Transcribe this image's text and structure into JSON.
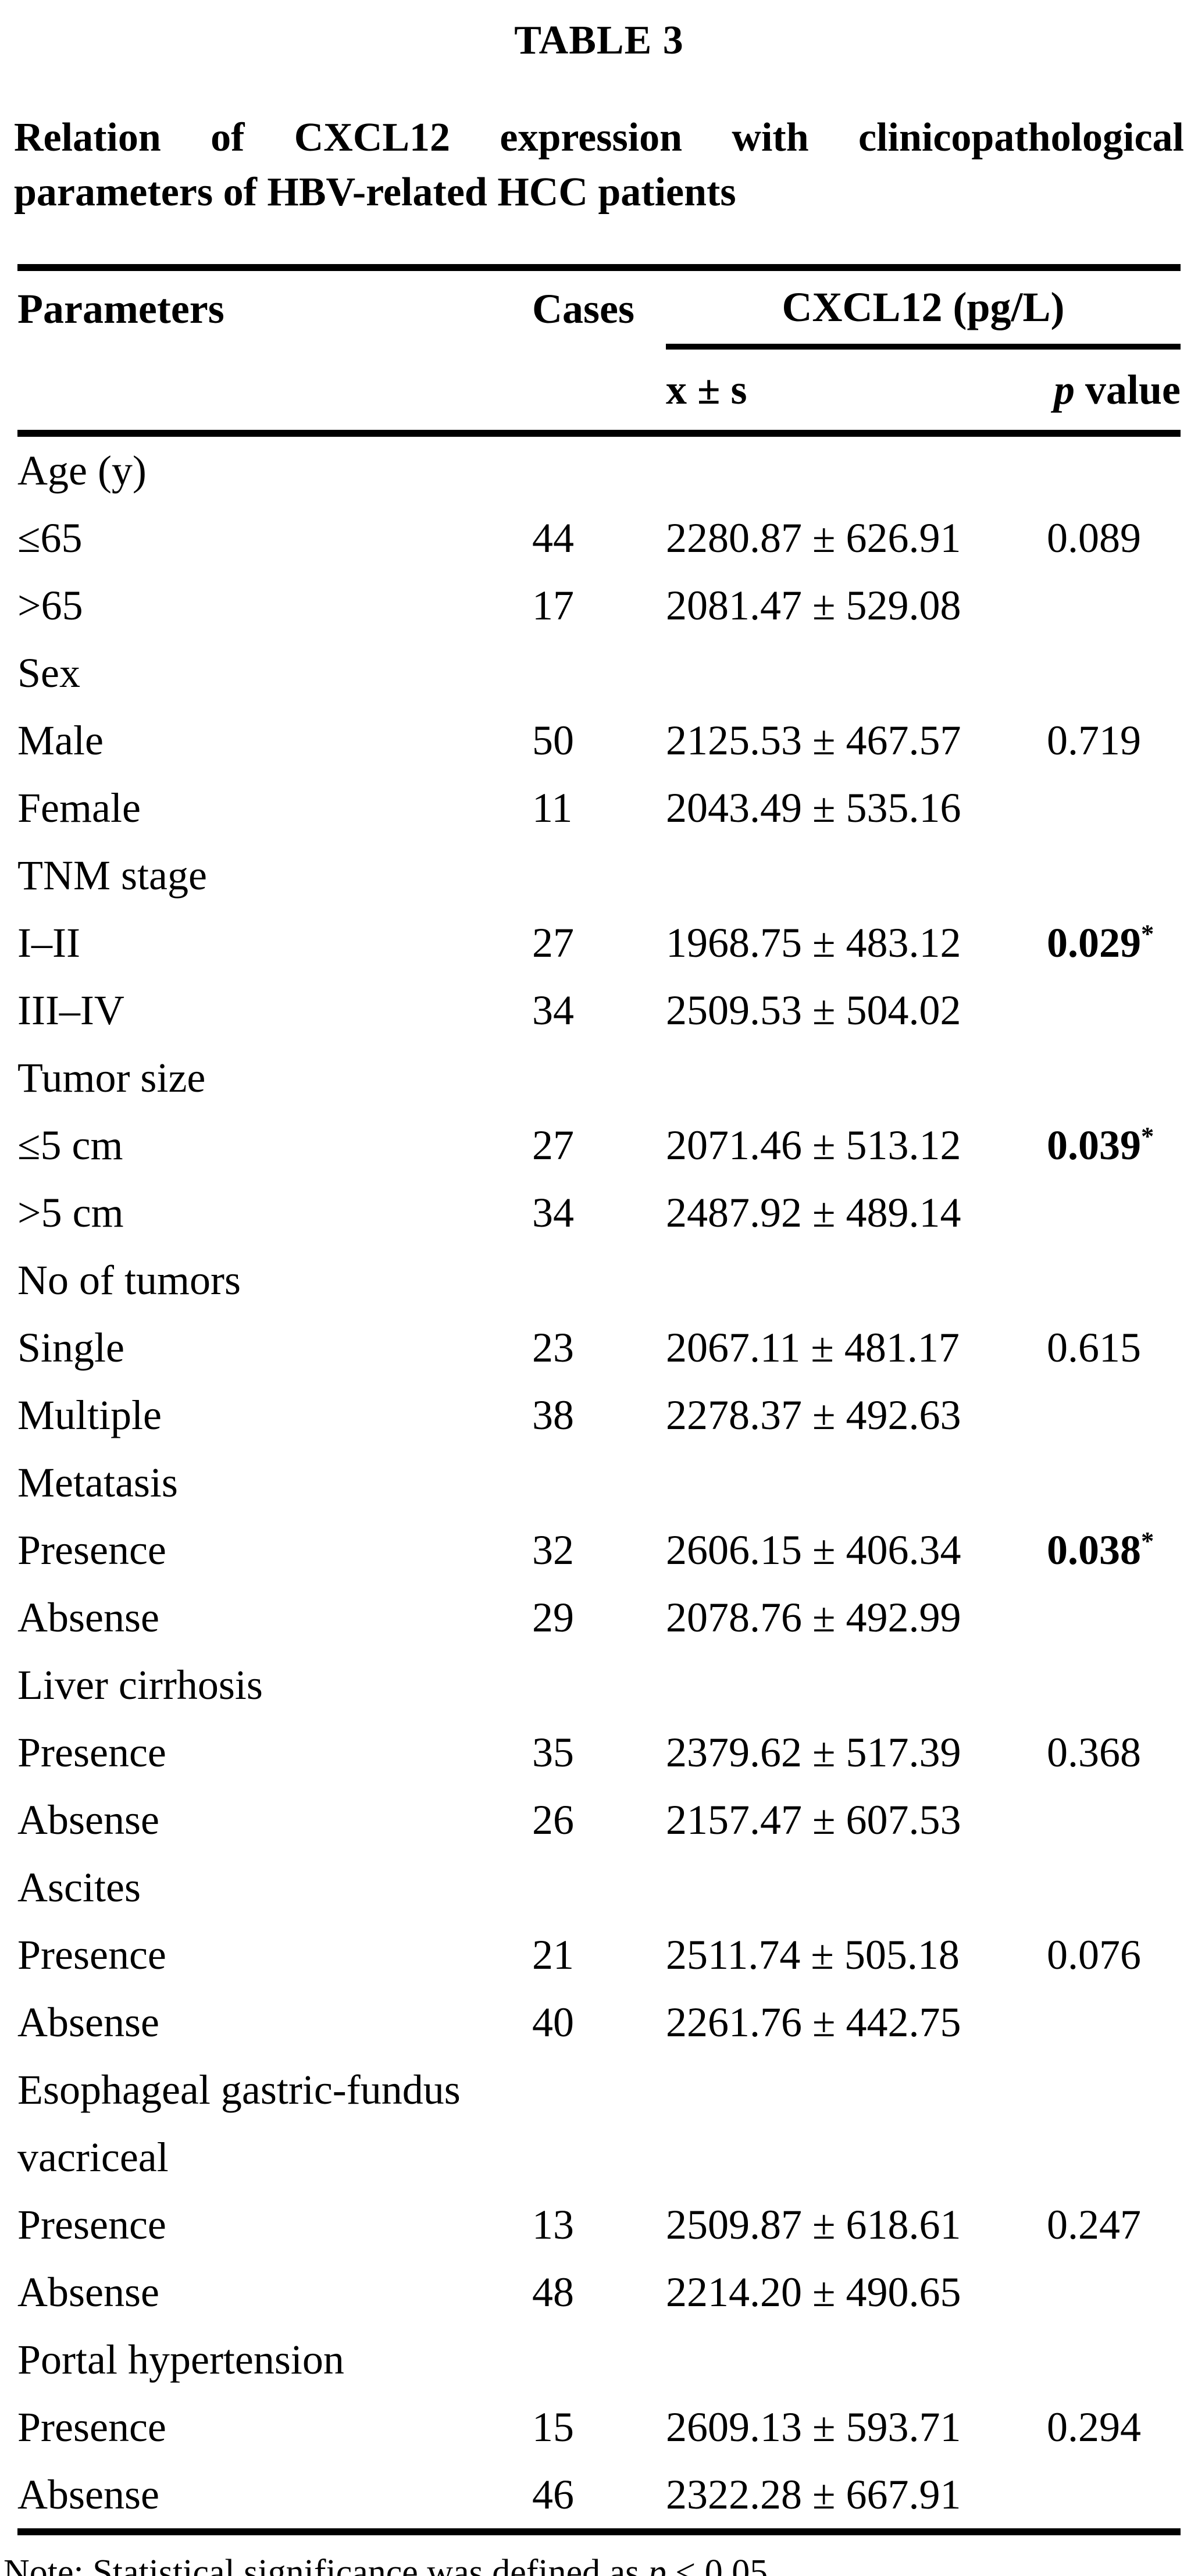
{
  "page": {
    "background": "#ffffff",
    "text_color": "#000000"
  },
  "table_label": "TABLE 3",
  "caption": "Relation of CXCL12 expression with clinicopathological parameters of HBV-related HCC patients",
  "header": {
    "parameters": "Parameters",
    "cases": "Cases",
    "group": "CXCL12 (pg/L)",
    "mean_sd": "x ± s",
    "p_italic": "p",
    "p_rest": " value"
  },
  "sections": [
    {
      "label": "Age (y)",
      "rows": [
        {
          "parameter": "≤65",
          "cases": "44",
          "mean_sd": "2280.87 ± 626.91",
          "p": "0.089",
          "star": ""
        },
        {
          "parameter": ">65",
          "cases": "17",
          "mean_sd": "2081.47 ± 529.08",
          "p": "",
          "star": ""
        }
      ]
    },
    {
      "label": "Sex",
      "rows": [
        {
          "parameter": "Male",
          "cases": "50",
          "mean_sd": "2125.53 ± 467.57",
          "p": "0.719",
          "star": ""
        },
        {
          "parameter": "Female",
          "cases": "11",
          "mean_sd": "2043.49 ± 535.16",
          "p": "",
          "star": ""
        }
      ]
    },
    {
      "label": "TNM stage",
      "rows": [
        {
          "parameter": "I–II",
          "cases": "27",
          "mean_sd": "1968.75 ± 483.12",
          "p": "0.029",
          "star": "*"
        },
        {
          "parameter": "III–IV",
          "cases": "34",
          "mean_sd": "2509.53 ± 504.02",
          "p": "",
          "star": ""
        }
      ]
    },
    {
      "label": "Tumor size",
      "rows": [
        {
          "parameter": "≤5 cm",
          "cases": "27",
          "mean_sd": "2071.46 ± 513.12",
          "p": "0.039",
          "star": "*"
        },
        {
          "parameter": ">5 cm",
          "cases": "34",
          "mean_sd": "2487.92 ± 489.14",
          "p": "",
          "star": ""
        }
      ]
    },
    {
      "label": "No of tumors",
      "rows": [
        {
          "parameter": "Single",
          "cases": "23",
          "mean_sd": "2067.11 ± 481.17",
          "p": "0.615",
          "star": ""
        },
        {
          "parameter": "Multiple",
          "cases": "38",
          "mean_sd": "2278.37 ± 492.63",
          "p": "",
          "star": ""
        }
      ]
    },
    {
      "label": "Metatasis",
      "rows": [
        {
          "parameter": "Presence",
          "cases": "32",
          "mean_sd": "2606.15 ± 406.34",
          "p": "0.038",
          "star": "*"
        },
        {
          "parameter": "Absense",
          "cases": "29",
          "mean_sd": "2078.76 ± 492.99",
          "p": "",
          "star": ""
        }
      ]
    },
    {
      "label": "Liver cirrhosis",
      "rows": [
        {
          "parameter": "Presence",
          "cases": "35",
          "mean_sd": "2379.62 ± 517.39",
          "p": "0.368",
          "star": ""
        },
        {
          "parameter": "Absense",
          "cases": "26",
          "mean_sd": "2157.47 ± 607.53",
          "p": "",
          "star": ""
        }
      ]
    },
    {
      "label": "Ascites",
      "rows": [
        {
          "parameter": "Presence",
          "cases": "21",
          "mean_sd": "2511.74 ± 505.18",
          "p": "0.076",
          "star": ""
        },
        {
          "parameter": "Absense",
          "cases": "40",
          "mean_sd": "2261.76 ± 442.75",
          "p": "",
          "star": ""
        }
      ]
    },
    {
      "label": "Esophageal gastric-fundus vacriceal",
      "rows": [
        {
          "parameter": "Presence",
          "cases": "13",
          "mean_sd": "2509.87 ± 618.61",
          "p": "0.247",
          "star": ""
        },
        {
          "parameter": "Absense",
          "cases": "48",
          "mean_sd": "2214.20 ± 490.65",
          "p": "",
          "star": ""
        }
      ]
    },
    {
      "label": "Portal hypertension",
      "rows": [
        {
          "parameter": "Presence",
          "cases": "15",
          "mean_sd": "2609.13 ± 593.71",
          "p": "0.294",
          "star": ""
        },
        {
          "parameter": "Absense",
          "cases": "46",
          "mean_sd": "2322.28 ± 667.91",
          "p": "",
          "star": ""
        }
      ]
    }
  ],
  "note": {
    "prefix": "Note: Statistical significance was defined as ",
    "italic": "p",
    "suffix": " < 0.05."
  }
}
